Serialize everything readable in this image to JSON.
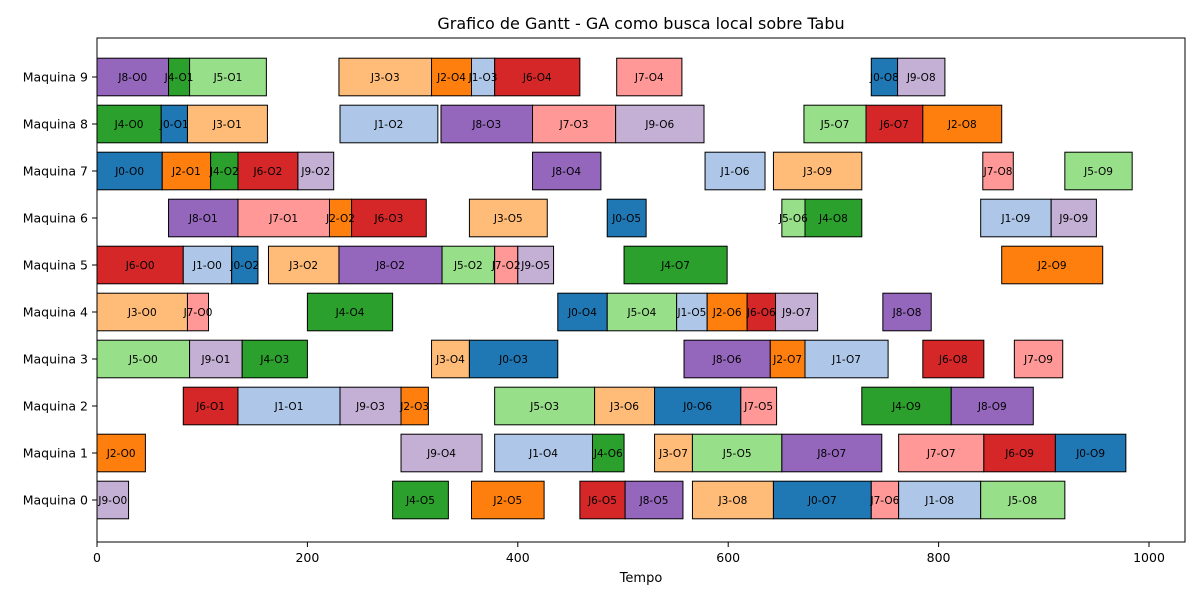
{
  "chart_data": {
    "type": "gantt",
    "title": "Grafico de Gantt - GA como busca local sobre Tabu",
    "xlabel": "Tempo",
    "ylabel": "",
    "xlim": [
      0,
      1035
    ],
    "xticks": [
      0,
      200,
      400,
      600,
      800,
      1000
    ],
    "rows": [
      "Maquina 0",
      "Maquina 1",
      "Maquina 2",
      "Maquina 3",
      "Maquina 4",
      "Maquina 5",
      "Maquina 6",
      "Maquina 7",
      "Maquina 8",
      "Maquina 9"
    ],
    "job_colors": {
      "J0": "#1f77b4",
      "J1": "#aec7e8",
      "J2": "#ff7f0e",
      "J3": "#ffbb78",
      "J4": "#2ca02c",
      "J5": "#98df8a",
      "J6": "#d62728",
      "J7": "#ff9896",
      "J8": "#9467bd",
      "J9": "#c5b0d5"
    },
    "tasks": [
      {
        "machine": 9,
        "label": "J8-O0",
        "job": "J8",
        "start": 0,
        "end": 68
      },
      {
        "machine": 9,
        "label": "J4-O1",
        "job": "J4",
        "start": 68,
        "end": 88
      },
      {
        "machine": 9,
        "label": "J5-O1",
        "job": "J5",
        "start": 88,
        "end": 161
      },
      {
        "machine": 9,
        "label": "J3-O3",
        "job": "J3",
        "start": 230,
        "end": 318
      },
      {
        "machine": 9,
        "label": "J2-O4",
        "job": "J2",
        "start": 318,
        "end": 356
      },
      {
        "machine": 9,
        "label": "J1-O3",
        "job": "J1",
        "start": 356,
        "end": 378
      },
      {
        "machine": 9,
        "label": "J6-O4",
        "job": "J6",
        "start": 378,
        "end": 459
      },
      {
        "machine": 9,
        "label": "J7-O4",
        "job": "J7",
        "start": 494,
        "end": 556
      },
      {
        "machine": 9,
        "label": "J0-O8",
        "job": "J0",
        "start": 736,
        "end": 761
      },
      {
        "machine": 9,
        "label": "J9-O8",
        "job": "J9",
        "start": 761,
        "end": 806
      },
      {
        "machine": 8,
        "label": "J4-O0",
        "job": "J4",
        "start": 0,
        "end": 61
      },
      {
        "machine": 8,
        "label": "J0-O1",
        "job": "J0",
        "start": 61,
        "end": 86
      },
      {
        "machine": 8,
        "label": "J3-O1",
        "job": "J3",
        "start": 86,
        "end": 162
      },
      {
        "machine": 8,
        "label": "J1-O2",
        "job": "J1",
        "start": 231,
        "end": 324
      },
      {
        "machine": 8,
        "label": "J8-O3",
        "job": "J8",
        "start": 327,
        "end": 414
      },
      {
        "machine": 8,
        "label": "J7-O3",
        "job": "J7",
        "start": 414,
        "end": 493
      },
      {
        "machine": 8,
        "label": "J9-O6",
        "job": "J9",
        "start": 493,
        "end": 577
      },
      {
        "machine": 8,
        "label": "J5-O7",
        "job": "J5",
        "start": 672,
        "end": 731
      },
      {
        "machine": 8,
        "label": "J6-O7",
        "job": "J6",
        "start": 731,
        "end": 785
      },
      {
        "machine": 8,
        "label": "J2-O8",
        "job": "J2",
        "start": 785,
        "end": 860
      },
      {
        "machine": 7,
        "label": "J0-O0",
        "job": "J0",
        "start": 0,
        "end": 62
      },
      {
        "machine": 7,
        "label": "J2-O1",
        "job": "J2",
        "start": 62,
        "end": 108
      },
      {
        "machine": 7,
        "label": "J4-O2",
        "job": "J4",
        "start": 108,
        "end": 134
      },
      {
        "machine": 7,
        "label": "J6-O2",
        "job": "J6",
        "start": 134,
        "end": 191
      },
      {
        "machine": 7,
        "label": "J9-O2",
        "job": "J9",
        "start": 191,
        "end": 225
      },
      {
        "machine": 7,
        "label": "J8-O4",
        "job": "J8",
        "start": 414,
        "end": 479
      },
      {
        "machine": 7,
        "label": "J1-O6",
        "job": "J1",
        "start": 578,
        "end": 635
      },
      {
        "machine": 7,
        "label": "J3-O9",
        "job": "J3",
        "start": 643,
        "end": 727
      },
      {
        "machine": 7,
        "label": "J7-O8",
        "job": "J7",
        "start": 842,
        "end": 871
      },
      {
        "machine": 7,
        "label": "J5-O9",
        "job": "J5",
        "start": 920,
        "end": 984
      },
      {
        "machine": 6,
        "label": "J8-O1",
        "job": "J8",
        "start": 68,
        "end": 134
      },
      {
        "machine": 6,
        "label": "J7-O1",
        "job": "J7",
        "start": 134,
        "end": 221
      },
      {
        "machine": 6,
        "label": "J2-O2",
        "job": "J2",
        "start": 221,
        "end": 242
      },
      {
        "machine": 6,
        "label": "J6-O3",
        "job": "J6",
        "start": 242,
        "end": 313
      },
      {
        "machine": 6,
        "label": "J3-O5",
        "job": "J3",
        "start": 354,
        "end": 428
      },
      {
        "machine": 6,
        "label": "J0-O5",
        "job": "J0",
        "start": 485,
        "end": 522
      },
      {
        "machine": 6,
        "label": "J5-O6",
        "job": "J5",
        "start": 651,
        "end": 673
      },
      {
        "machine": 6,
        "label": "J4-O8",
        "job": "J4",
        "start": 673,
        "end": 727
      },
      {
        "machine": 6,
        "label": "J1-O9",
        "job": "J1",
        "start": 840,
        "end": 907
      },
      {
        "machine": 6,
        "label": "J9-O9",
        "job": "J9",
        "start": 907,
        "end": 950
      },
      {
        "machine": 5,
        "label": "J6-O0",
        "job": "J6",
        "start": 0,
        "end": 82
      },
      {
        "machine": 5,
        "label": "J1-O0",
        "job": "J1",
        "start": 82,
        "end": 128
      },
      {
        "machine": 5,
        "label": "J0-O2",
        "job": "J0",
        "start": 128,
        "end": 153
      },
      {
        "machine": 5,
        "label": "J3-O2",
        "job": "J3",
        "start": 163,
        "end": 230
      },
      {
        "machine": 5,
        "label": "J8-O2",
        "job": "J8",
        "start": 230,
        "end": 328
      },
      {
        "machine": 5,
        "label": "J5-O2",
        "job": "J5",
        "start": 328,
        "end": 378
      },
      {
        "machine": 5,
        "label": "J7-O2",
        "job": "J7",
        "start": 378,
        "end": 400
      },
      {
        "machine": 5,
        "label": "J9-O5",
        "job": "J9",
        "start": 400,
        "end": 434
      },
      {
        "machine": 5,
        "label": "J4-O7",
        "job": "J4",
        "start": 501,
        "end": 599
      },
      {
        "machine": 5,
        "label": "J2-O9",
        "job": "J2",
        "start": 860,
        "end": 956
      },
      {
        "machine": 4,
        "label": "J3-O0",
        "job": "J3",
        "start": 0,
        "end": 86
      },
      {
        "machine": 4,
        "label": "J7-O0",
        "job": "J7",
        "start": 86,
        "end": 106
      },
      {
        "machine": 4,
        "label": "J4-O4",
        "job": "J4",
        "start": 200,
        "end": 281
      },
      {
        "machine": 4,
        "label": "J0-O4",
        "job": "J0",
        "start": 438,
        "end": 485
      },
      {
        "machine": 4,
        "label": "J5-O4",
        "job": "J5",
        "start": 485,
        "end": 551
      },
      {
        "machine": 4,
        "label": "J1-O5",
        "job": "J1",
        "start": 551,
        "end": 580
      },
      {
        "machine": 4,
        "label": "J2-O6",
        "job": "J2",
        "start": 580,
        "end": 618
      },
      {
        "machine": 4,
        "label": "J6-O6",
        "job": "J6",
        "start": 618,
        "end": 645
      },
      {
        "machine": 4,
        "label": "J9-O7",
        "job": "J9",
        "start": 645,
        "end": 685
      },
      {
        "machine": 4,
        "label": "J8-O8",
        "job": "J8",
        "start": 747,
        "end": 793
      },
      {
        "machine": 3,
        "label": "J5-O0",
        "job": "J5",
        "start": 0,
        "end": 88
      },
      {
        "machine": 3,
        "label": "J9-O1",
        "job": "J9",
        "start": 88,
        "end": 138
      },
      {
        "machine": 3,
        "label": "J4-O3",
        "job": "J4",
        "start": 138,
        "end": 200
      },
      {
        "machine": 3,
        "label": "J3-O4",
        "job": "J3",
        "start": 318,
        "end": 354
      },
      {
        "machine": 3,
        "label": "J0-O3",
        "job": "J0",
        "start": 354,
        "end": 438
      },
      {
        "machine": 3,
        "label": "J8-O6",
        "job": "J8",
        "start": 558,
        "end": 640
      },
      {
        "machine": 3,
        "label": "J2-O7",
        "job": "J2",
        "start": 640,
        "end": 673
      },
      {
        "machine": 3,
        "label": "J1-O7",
        "job": "J1",
        "start": 673,
        "end": 752
      },
      {
        "machine": 3,
        "label": "J6-O8",
        "job": "J6",
        "start": 785,
        "end": 843
      },
      {
        "machine": 3,
        "label": "J7-O9",
        "job": "J7",
        "start": 872,
        "end": 918
      },
      {
        "machine": 2,
        "label": "J6-O1",
        "job": "J6",
        "start": 82,
        "end": 134
      },
      {
        "machine": 2,
        "label": "J1-O1",
        "job": "J1",
        "start": 134,
        "end": 231
      },
      {
        "machine": 2,
        "label": "J9-O3",
        "job": "J9",
        "start": 231,
        "end": 289
      },
      {
        "machine": 2,
        "label": "J2-O3",
        "job": "J2",
        "start": 289,
        "end": 315
      },
      {
        "machine": 2,
        "label": "J5-O3",
        "job": "J5",
        "start": 378,
        "end": 473
      },
      {
        "machine": 2,
        "label": "J3-O6",
        "job": "J3",
        "start": 473,
        "end": 530
      },
      {
        "machine": 2,
        "label": "J0-O6",
        "job": "J0",
        "start": 530,
        "end": 612
      },
      {
        "machine": 2,
        "label": "J7-O5",
        "job": "J7",
        "start": 612,
        "end": 646
      },
      {
        "machine": 2,
        "label": "J4-O9",
        "job": "J4",
        "start": 727,
        "end": 812
      },
      {
        "machine": 2,
        "label": "J8-O9",
        "job": "J8",
        "start": 812,
        "end": 890
      },
      {
        "machine": 1,
        "label": "J2-O0",
        "job": "J2",
        "start": 0,
        "end": 46
      },
      {
        "machine": 1,
        "label": "J9-O4",
        "job": "J9",
        "start": 289,
        "end": 366
      },
      {
        "machine": 1,
        "label": "J1-O4",
        "job": "J1",
        "start": 378,
        "end": 471
      },
      {
        "machine": 1,
        "label": "J4-O6",
        "job": "J4",
        "start": 471,
        "end": 501
      },
      {
        "machine": 1,
        "label": "J3-O7",
        "job": "J3",
        "start": 530,
        "end": 566
      },
      {
        "machine": 1,
        "label": "J5-O5",
        "job": "J5",
        "start": 566,
        "end": 651
      },
      {
        "machine": 1,
        "label": "J8-O7",
        "job": "J8",
        "start": 651,
        "end": 746
      },
      {
        "machine": 1,
        "label": "J7-O7",
        "job": "J7",
        "start": 762,
        "end": 843
      },
      {
        "machine": 1,
        "label": "J6-O9",
        "job": "J6",
        "start": 843,
        "end": 911
      },
      {
        "machine": 1,
        "label": "J0-O9",
        "job": "J0",
        "start": 911,
        "end": 978
      },
      {
        "machine": 0,
        "label": "J9-O0",
        "job": "J9",
        "start": 0,
        "end": 30
      },
      {
        "machine": 0,
        "label": "J4-O5",
        "job": "J4",
        "start": 281,
        "end": 334
      },
      {
        "machine": 0,
        "label": "J2-O5",
        "job": "J2",
        "start": 356,
        "end": 425
      },
      {
        "machine": 0,
        "label": "J6-O5",
        "job": "J6",
        "start": 459,
        "end": 502
      },
      {
        "machine": 0,
        "label": "J8-O5",
        "job": "J8",
        "start": 502,
        "end": 557
      },
      {
        "machine": 0,
        "label": "J3-O8",
        "job": "J3",
        "start": 566,
        "end": 643
      },
      {
        "machine": 0,
        "label": "J0-O7",
        "job": "J0",
        "start": 643,
        "end": 736
      },
      {
        "machine": 0,
        "label": "J7-O6",
        "job": "J7",
        "start": 736,
        "end": 762
      },
      {
        "machine": 0,
        "label": "J1-O8",
        "job": "J1",
        "start": 762,
        "end": 840
      },
      {
        "machine": 0,
        "label": "J5-O8",
        "job": "J5",
        "start": 840,
        "end": 920
      }
    ]
  }
}
